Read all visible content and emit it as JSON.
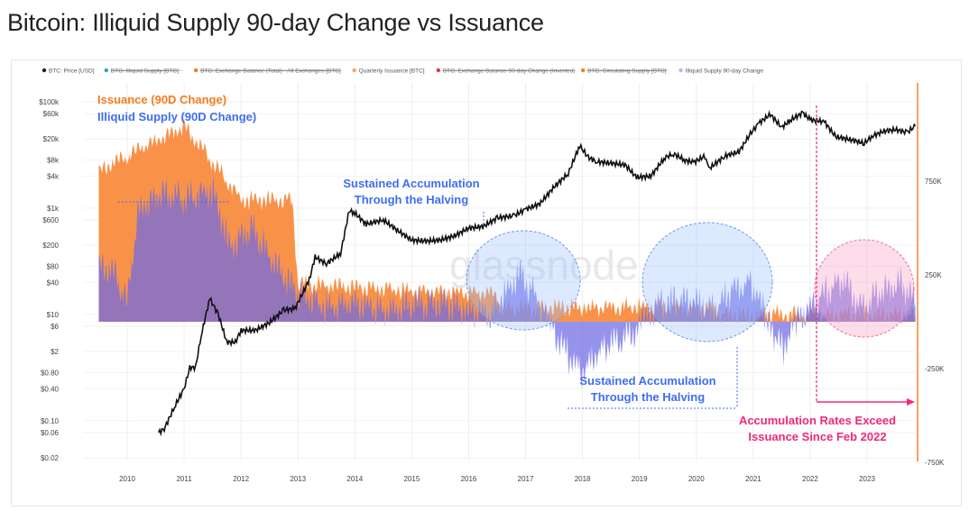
{
  "title": "Bitcoin: Illiquid Supply 90-day Change vs Issuance",
  "watermark": "glassnode",
  "legend": [
    {
      "label": "BTC: Price [USD]",
      "color": "#222222",
      "struck": false
    },
    {
      "label": "BTC: Illiquid Supply [BTC]",
      "color": "#2aa0d0",
      "struck": true
    },
    {
      "label": "BTC: Exchange Balance (Total) - All Exchanges [BTC]",
      "color": "#f57c1f",
      "struck": true
    },
    {
      "label": "Quarterly Issuance [BTC]",
      "color": "#f7a35c",
      "struck": false
    },
    {
      "label": "BTC: Exchange Balance 90-day Change (Inverted)",
      "color": "#e8334a",
      "struck": true
    },
    {
      "label": "BTC: Circulating Supply [BTC]",
      "color": "#f57c1f",
      "struck": true
    },
    {
      "label": "Illiquid Supply 90-day Change",
      "color": "#b9b6f0",
      "struck": false
    }
  ],
  "annotations": {
    "issuance_label": "Issuance (90D Change)",
    "illiquid_label": "Illiquid Supply (90D Change)",
    "accum1_line1": "Sustained Accumulation",
    "accum1_line2": "Through the Halving",
    "accum2_line1": "Sustained Accumulation",
    "accum2_line2": "Through the Halving",
    "rates_line1": "Accumulation Rates Exceed",
    "rates_line2": "Issuance Since Feb 2022"
  },
  "chart_data": {
    "type": "area",
    "xlabel": "",
    "ylabel": "",
    "x_ticks": [
      "2010",
      "2011",
      "2012",
      "2013",
      "2014",
      "2015",
      "2016",
      "2017",
      "2018",
      "2019",
      "2020",
      "2021",
      "2022",
      "2023"
    ],
    "left_axis": {
      "scale": "log",
      "unit": "USD",
      "ticks": [
        "$100k",
        "$60k",
        "$20k",
        "$8k",
        "$4k",
        "$1k",
        "$600",
        "$200",
        "$80",
        "$40",
        "$10",
        "$6",
        "$2",
        "$0.80",
        "$0.40",
        "$0.10",
        "$0.06",
        "$0.02"
      ]
    },
    "right_axis": {
      "scale": "linear",
      "unit": "BTC",
      "ticks": [
        "750K",
        "250K",
        "-250K",
        "-750K"
      ]
    },
    "series": [
      {
        "name": "BTC: Price [USD]",
        "axis": "left",
        "color": "#111111",
        "points": [
          [
            2010.55,
            0.06
          ],
          [
            2010.65,
            0.07
          ],
          [
            2010.85,
            0.2
          ],
          [
            2011.0,
            0.4
          ],
          [
            2011.1,
            1
          ],
          [
            2011.2,
            1
          ],
          [
            2011.3,
            4
          ],
          [
            2011.45,
            20
          ],
          [
            2011.6,
            10
          ],
          [
            2011.75,
            3
          ],
          [
            2011.9,
            3
          ],
          [
            2012.0,
            5
          ],
          [
            2012.25,
            5
          ],
          [
            2012.5,
            7
          ],
          [
            2012.75,
            12
          ],
          [
            2012.95,
            13
          ],
          [
            2013.2,
            45
          ],
          [
            2013.3,
            120
          ],
          [
            2013.5,
            90
          ],
          [
            2013.75,
            140
          ],
          [
            2013.9,
            900
          ],
          [
            2014.0,
            800
          ],
          [
            2014.2,
            500
          ],
          [
            2014.5,
            600
          ],
          [
            2014.75,
            380
          ],
          [
            2015.0,
            250
          ],
          [
            2015.25,
            240
          ],
          [
            2015.5,
            250
          ],
          [
            2015.75,
            300
          ],
          [
            2016.0,
            420
          ],
          [
            2016.25,
            450
          ],
          [
            2016.5,
            650
          ],
          [
            2016.8,
            720
          ],
          [
            2017.0,
            950
          ],
          [
            2017.25,
            1200
          ],
          [
            2017.5,
            2500
          ],
          [
            2017.75,
            4500
          ],
          [
            2017.95,
            15000
          ],
          [
            2018.1,
            9000
          ],
          [
            2018.25,
            7500
          ],
          [
            2018.5,
            7000
          ],
          [
            2018.75,
            6500
          ],
          [
            2018.95,
            3800
          ],
          [
            2019.2,
            4000
          ],
          [
            2019.45,
            9000
          ],
          [
            2019.6,
            10500
          ],
          [
            2019.8,
            8000
          ],
          [
            2019.95,
            7200
          ],
          [
            2020.15,
            9500
          ],
          [
            2020.22,
            5500
          ],
          [
            2020.5,
            9500
          ],
          [
            2020.75,
            11500
          ],
          [
            2020.95,
            25000
          ],
          [
            2021.1,
            40000
          ],
          [
            2021.3,
            58000
          ],
          [
            2021.5,
            33000
          ],
          [
            2021.65,
            45000
          ],
          [
            2021.87,
            62000
          ],
          [
            2022.0,
            46000
          ],
          [
            2022.25,
            42000
          ],
          [
            2022.45,
            22000
          ],
          [
            2022.7,
            19500
          ],
          [
            2022.95,
            16600
          ],
          [
            2023.1,
            23000
          ],
          [
            2023.3,
            28000
          ],
          [
            2023.5,
            30000
          ],
          [
            2023.7,
            26500
          ],
          [
            2023.85,
            35000
          ]
        ]
      },
      {
        "name": "Quarterly Issuance [BTC]",
        "axis": "right",
        "color": "#f7a35c",
        "points": [
          [
            2009.5,
            800000
          ],
          [
            2011.0,
            1050000
          ],
          [
            2012.0,
            650000
          ],
          [
            2012.9,
            650000
          ],
          [
            2013.0,
            200000
          ],
          [
            2016.0,
            150000
          ],
          [
            2016.5,
            150000
          ],
          [
            2016.55,
            75000
          ],
          [
            2020.35,
            75000
          ],
          [
            2020.4,
            37500
          ],
          [
            2023.85,
            37500
          ]
        ]
      },
      {
        "name": "Illiquid Supply 90-day Change",
        "axis": "right",
        "color": "#6b63d6",
        "points": [
          [
            2009.5,
            300000
          ],
          [
            2009.8,
            250000
          ],
          [
            2010.0,
            100000
          ],
          [
            2010.2,
            600000
          ],
          [
            2010.6,
            700000
          ],
          [
            2011.0,
            650000
          ],
          [
            2011.5,
            700000
          ],
          [
            2011.8,
            400000
          ],
          [
            2012.2,
            500000
          ],
          [
            2012.6,
            300000
          ],
          [
            2013.0,
            150000
          ],
          [
            2013.5,
            80000
          ],
          [
            2014.0,
            100000
          ],
          [
            2014.5,
            50000
          ],
          [
            2015.0,
            90000
          ],
          [
            2015.5,
            100000
          ],
          [
            2016.0,
            60000
          ],
          [
            2016.4,
            40000
          ],
          [
            2016.9,
            250000
          ],
          [
            2017.2,
            120000
          ],
          [
            2017.6,
            -120000
          ],
          [
            2018.0,
            -270000
          ],
          [
            2018.4,
            -120000
          ],
          [
            2018.8,
            -90000
          ],
          [
            2019.3,
            80000
          ],
          [
            2019.8,
            120000
          ],
          [
            2020.3,
            60000
          ],
          [
            2020.6,
            160000
          ],
          [
            2020.95,
            210000
          ],
          [
            2021.2,
            60000
          ],
          [
            2021.5,
            -150000
          ],
          [
            2021.8,
            20000
          ],
          [
            2022.2,
            140000
          ],
          [
            2022.6,
            230000
          ],
          [
            2022.9,
            80000
          ],
          [
            2023.2,
            150000
          ],
          [
            2023.6,
            200000
          ],
          [
            2023.85,
            100000
          ]
        ]
      }
    ]
  }
}
